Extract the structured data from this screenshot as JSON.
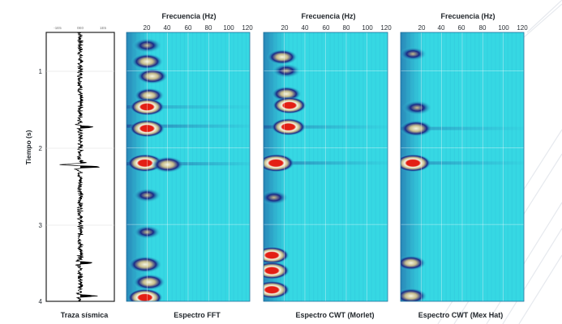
{
  "chart_data": {
    "type": "heatmap",
    "time_axis": {
      "label": "Tiempo (s)",
      "range": [
        0.5,
        4
      ],
      "ticks": [
        "1",
        "2",
        "3",
        "4"
      ]
    },
    "trace": {
      "title": "Traza sísmica",
      "tick_labels": [
        "-1E5",
        "0E0",
        "1E5"
      ],
      "events": [
        {
          "t": 1.73,
          "amp": 0.85
        },
        {
          "t": 2.22,
          "amp": -0.9
        },
        {
          "t": 2.25,
          "amp": 1.0
        },
        {
          "t": 3.5,
          "amp": 0.7
        },
        {
          "t": 3.93,
          "amp": 0.95
        }
      ]
    },
    "freq_axis": {
      "label": "Frecuencia (Hz)",
      "range": [
        0,
        120
      ],
      "ticks": [
        "20",
        "40",
        "60",
        "80",
        "100",
        "120"
      ]
    },
    "panels": [
      {
        "title": "Espectro FFT",
        "blobs": [
          {
            "t": 0.67,
            "f": 20,
            "a": 0.55
          },
          {
            "t": 0.88,
            "f": 20,
            "a": 0.75
          },
          {
            "t": 1.07,
            "f": 25,
            "a": 0.7
          },
          {
            "t": 1.32,
            "f": 22,
            "a": 0.6
          },
          {
            "t": 1.47,
            "f": 20,
            "a": 0.95
          },
          {
            "t": 1.75,
            "f": 20,
            "a": 1.0
          },
          {
            "t": 2.2,
            "f": 18,
            "a": 1.05
          },
          {
            "t": 2.22,
            "f": 40,
            "a": 0.75
          },
          {
            "t": 2.62,
            "f": 20,
            "a": 0.45
          },
          {
            "t": 3.1,
            "f": 20,
            "a": 0.4
          },
          {
            "t": 3.52,
            "f": 18,
            "a": 0.85
          },
          {
            "t": 3.75,
            "f": 22,
            "a": 0.75
          },
          {
            "t": 3.95,
            "f": 18,
            "a": 1.0
          }
        ],
        "bands": [
          {
            "t": 1.72,
            "a": 0.6
          },
          {
            "t": 2.21,
            "a": 0.75
          },
          {
            "t": 1.47,
            "a": 0.35
          }
        ]
      },
      {
        "title": "Espectro CWT (Morlet)",
        "blobs": [
          {
            "t": 0.82,
            "f": 18,
            "a": 0.65
          },
          {
            "t": 1.0,
            "f": 22,
            "a": 0.5
          },
          {
            "t": 1.3,
            "f": 22,
            "a": 0.6
          },
          {
            "t": 1.45,
            "f": 25,
            "a": 0.9
          },
          {
            "t": 1.73,
            "f": 24,
            "a": 0.95
          },
          {
            "t": 2.2,
            "f": 12,
            "a": 1.1
          },
          {
            "t": 2.65,
            "f": 10,
            "a": 0.5
          },
          {
            "t": 3.4,
            "f": 8,
            "a": 0.95
          },
          {
            "t": 3.6,
            "f": 8,
            "a": 1.0
          },
          {
            "t": 3.85,
            "f": 8,
            "a": 1.05
          }
        ],
        "bands": [
          {
            "t": 1.73,
            "a": 0.45
          },
          {
            "t": 2.2,
            "a": 0.55
          }
        ]
      },
      {
        "title": "Espectro CWT (Mex Hat)",
        "blobs": [
          {
            "t": 0.78,
            "f": 12,
            "a": 0.4
          },
          {
            "t": 1.48,
            "f": 16,
            "a": 0.55
          },
          {
            "t": 1.75,
            "f": 15,
            "a": 0.8
          },
          {
            "t": 2.2,
            "f": 12,
            "a": 1.05
          },
          {
            "t": 3.5,
            "f": 10,
            "a": 0.6
          },
          {
            "t": 3.93,
            "f": 10,
            "a": 0.75
          }
        ],
        "bands": [
          {
            "t": 1.75,
            "a": 0.4
          },
          {
            "t": 2.2,
            "a": 0.45
          }
        ]
      }
    ],
    "colormap": [
      "#36d8e3",
      "#1a2a86",
      "#c6bd8c",
      "#f4f4e2",
      "#e31f14"
    ],
    "grid": true
  }
}
